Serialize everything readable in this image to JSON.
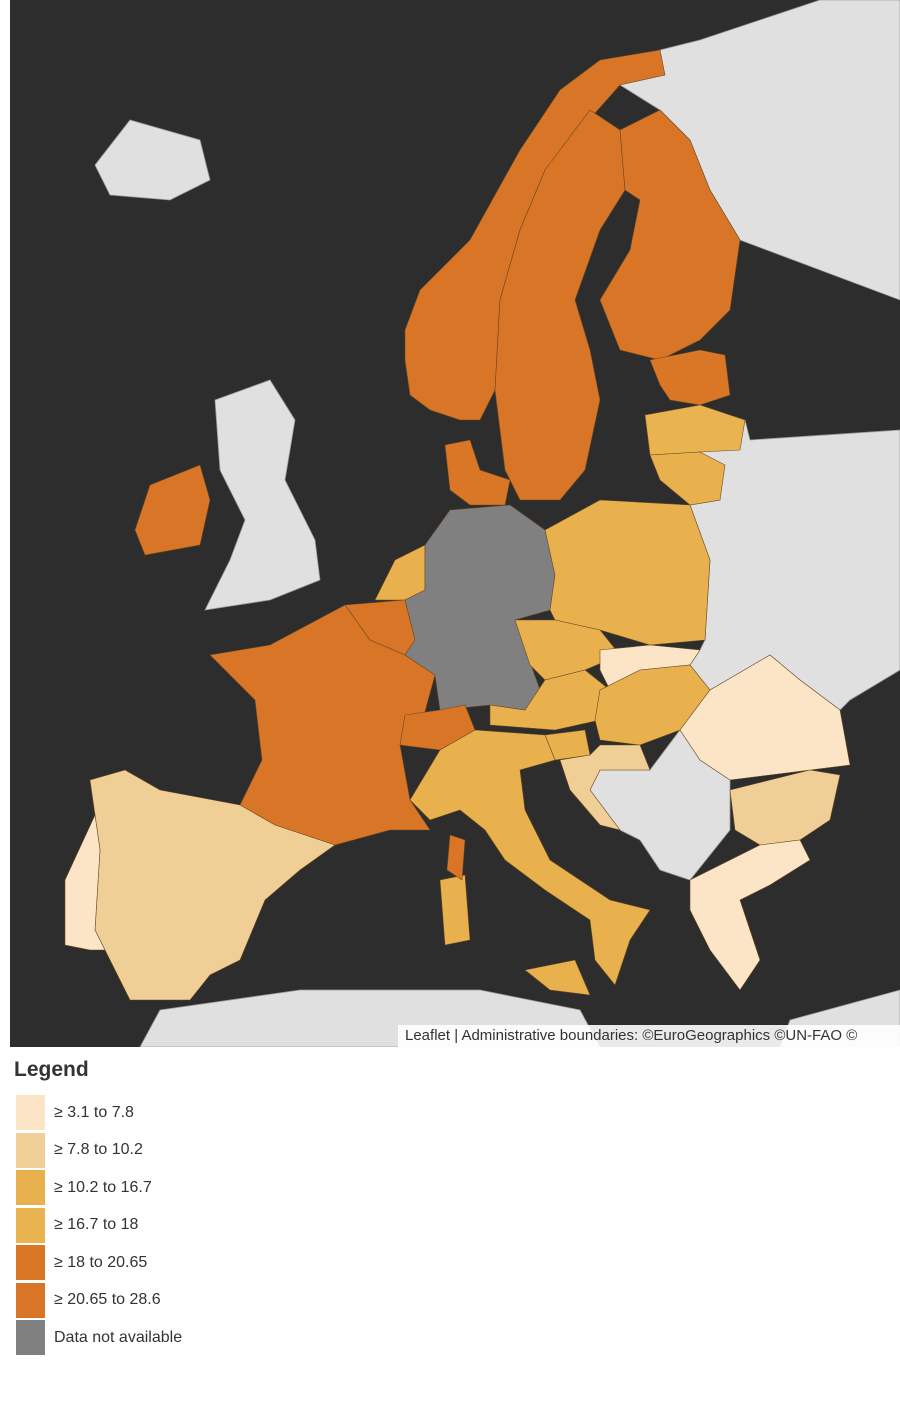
{
  "map": {
    "attribution": "Leaflet | Administrative boundaries: ©EuroGeographics ©UN-FAO ©",
    "legend": {
      "title": "Legend",
      "items": [
        {
          "label": "≥ 3.1 to 7.8",
          "color": "#fbe5c6"
        },
        {
          "label": "≥ 7.8 to 10.2",
          "color": "#f0cf96"
        },
        {
          "label": "≥ 10.2 to 16.7",
          "color": "#e8b14d"
        },
        {
          "label": "≥ 16.7 to 18",
          "color": "#e9b44f"
        },
        {
          "label": "≥ 18 to 20.65",
          "color": "#d97727"
        },
        {
          "label": "≥ 20.65 to 28.6",
          "color": "#d97526"
        },
        {
          "label": "Data not available",
          "color": "#808080"
        }
      ]
    }
  }
}
